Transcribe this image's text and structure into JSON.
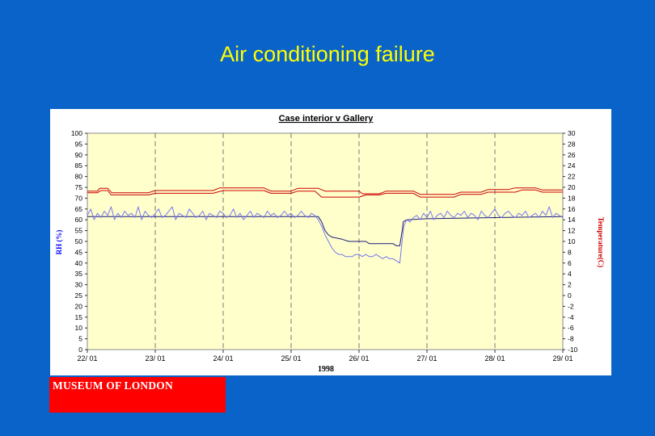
{
  "slide": {
    "title": "Air conditioning failure"
  },
  "logo": {
    "text": "MUSEUM OF LONDON"
  },
  "colors": {
    "background": "#0a63c8",
    "title": "#ffff00",
    "plot_area": "#ffffcc",
    "rh_axis_label": "#0000ff",
    "temp_axis_label": "#cc0000",
    "logo_box": "#ff0000"
  },
  "chart_data": {
    "type": "line",
    "title": "Case interior v Gallery",
    "xlabel": "1998",
    "ylabel_left": "RH (%)",
    "ylabel_right": "Temperature(C)",
    "categories": [
      "22/ 01",
      "23/ 01",
      "24/ 01",
      "25/ 01",
      "26/ 01",
      "27/ 01",
      "28/ 01",
      "29/ 01"
    ],
    "xlim": [
      0,
      7
    ],
    "ylim_left": [
      0,
      100
    ],
    "ylim_right": [
      -10,
      30
    ],
    "left_ticks": [
      100,
      95,
      90,
      85,
      80,
      75,
      70,
      65,
      60,
      55,
      50,
      45,
      40,
      35,
      30,
      25,
      20,
      15,
      10,
      5,
      0
    ],
    "right_ticks": [
      30,
      28,
      26,
      24,
      22,
      20,
      18,
      16,
      14,
      12,
      10,
      8,
      6,
      4,
      2,
      0,
      -2,
      -4,
      -6,
      -8,
      -10
    ],
    "grid": "vertical dashed at each day",
    "legend": "none",
    "series": [
      {
        "axis": "right",
        "color": "#cc0000",
        "x": [
          0,
          0.15,
          0.18,
          0.3,
          0.36,
          0.9,
          1.0,
          1.85,
          1.95,
          2.6,
          2.7,
          3.0,
          3.1,
          3.4,
          3.5,
          4.0,
          4.05,
          4.3,
          4.4,
          4.8,
          4.9,
          5.4,
          5.5,
          5.8,
          5.9,
          6.2,
          6.3,
          6.6,
          6.7,
          7.0
        ],
        "y": [
          19.3,
          19.3,
          19.8,
          19.8,
          19.0,
          19.0,
          19.4,
          19.4,
          19.9,
          19.9,
          19.3,
          19.3,
          19.8,
          19.8,
          19.3,
          19.3,
          18.8,
          18.8,
          19.3,
          19.3,
          18.7,
          18.7,
          19.1,
          19.1,
          19.6,
          19.6,
          19.9,
          19.9,
          19.5,
          19.5
        ]
      },
      {
        "axis": "right",
        "color": "#cc0000",
        "x": [
          0,
          0.15,
          0.2,
          0.3,
          0.35,
          0.9,
          1.0,
          1.85,
          2.0,
          2.6,
          2.7,
          3.0,
          3.1,
          3.35,
          3.45,
          4.0,
          4.1,
          4.3,
          4.4,
          4.8,
          4.9,
          5.4,
          5.5,
          5.8,
          5.9,
          6.3,
          6.4,
          6.6,
          6.7,
          7.0
        ],
        "y": [
          19.0,
          19.0,
          19.4,
          19.4,
          18.6,
          18.6,
          18.9,
          18.9,
          19.4,
          19.4,
          18.9,
          18.9,
          19.3,
          19.3,
          18.2,
          18.2,
          18.6,
          18.6,
          18.9,
          18.9,
          18.2,
          18.2,
          18.7,
          18.7,
          19.1,
          19.1,
          19.5,
          19.5,
          19.1,
          19.1
        ]
      },
      {
        "axis": "left",
        "color": "#1a1a7a",
        "x": [
          0,
          3.4,
          3.45,
          3.5,
          3.55,
          3.6,
          3.75,
          3.85,
          4.1,
          4.15,
          4.5,
          4.55,
          4.6,
          4.62,
          4.64,
          4.65,
          4.7,
          5.0,
          6.0,
          7.0
        ],
        "y": [
          61.5,
          61.5,
          59,
          55,
          53,
          52,
          51,
          50,
          50,
          49,
          49,
          48,
          48,
          52,
          56,
          59,
          60,
          60.5,
          61,
          61.5
        ]
      },
      {
        "axis": "left",
        "color": "#7777ee",
        "x": [
          0,
          0.05,
          0.1,
          0.15,
          0.2,
          0.25,
          0.3,
          0.35,
          0.4,
          0.45,
          0.5,
          0.55,
          0.6,
          0.65,
          0.7,
          0.75,
          0.8,
          0.85,
          0.9,
          0.95,
          1.0,
          1.05,
          1.1,
          1.15,
          1.2,
          1.25,
          1.3,
          1.35,
          1.4,
          1.45,
          1.5,
          1.55,
          1.6,
          1.65,
          1.7,
          1.75,
          1.8,
          1.85,
          1.9,
          1.95,
          2.0,
          2.05,
          2.1,
          2.15,
          2.2,
          2.25,
          2.3,
          2.35,
          2.4,
          2.45,
          2.5,
          2.55,
          2.6,
          2.65,
          2.7,
          2.75,
          2.8,
          2.85,
          2.9,
          2.95,
          3.0,
          3.05,
          3.1,
          3.15,
          3.2,
          3.25,
          3.3,
          3.35,
          3.4,
          3.45,
          3.5,
          3.55,
          3.6,
          3.65,
          3.7,
          3.75,
          3.8,
          3.85,
          3.9,
          3.95,
          4.0,
          4.05,
          4.1,
          4.15,
          4.2,
          4.25,
          4.3,
          4.35,
          4.4,
          4.45,
          4.5,
          4.55,
          4.6,
          4.62,
          4.64,
          4.66,
          4.7,
          4.75,
          4.8,
          4.85,
          4.9,
          4.95,
          5.0,
          5.05,
          5.1,
          5.15,
          5.2,
          5.25,
          5.3,
          5.35,
          5.4,
          5.45,
          5.5,
          5.55,
          5.6,
          5.65,
          5.7,
          5.75,
          5.8,
          5.85,
          5.9,
          5.95,
          6.0,
          6.05,
          6.1,
          6.15,
          6.2,
          6.25,
          6.3,
          6.35,
          6.4,
          6.45,
          6.5,
          6.55,
          6.6,
          6.65,
          6.7,
          6.75,
          6.8,
          6.85,
          6.9,
          6.95,
          7.0
        ],
        "y": [
          62,
          65,
          60,
          63,
          61,
          64,
          62,
          66,
          60,
          63,
          61,
          64,
          62,
          63,
          61,
          66,
          60,
          64,
          62,
          61,
          63,
          65,
          61,
          62,
          64,
          66,
          60,
          63,
          62,
          61,
          65,
          63,
          61,
          62,
          64,
          60,
          63,
          62,
          61,
          64,
          63,
          61,
          62,
          65,
          61,
          63,
          60,
          62,
          64,
          61,
          63,
          62,
          61,
          64,
          62,
          63,
          61,
          62,
          64,
          62,
          63,
          61,
          62,
          64,
          62,
          61,
          63,
          62,
          60,
          57,
          53,
          50,
          47,
          45,
          44,
          44,
          43,
          43,
          43,
          44,
          44,
          43,
          44,
          43,
          43,
          44,
          43,
          42,
          43,
          42,
          42,
          41,
          40,
          46,
          52,
          57,
          60,
          59,
          61,
          62,
          60,
          63,
          61,
          64,
          60,
          62,
          63,
          61,
          64,
          62,
          61,
          63,
          62,
          64,
          61,
          63,
          62,
          60,
          64,
          62,
          61,
          63,
          65,
          62,
          61,
          63,
          64,
          62,
          61,
          63,
          62,
          64,
          61,
          62,
          63,
          61,
          64,
          62,
          66,
          61,
          63,
          62,
          61
        ]
      }
    ]
  }
}
